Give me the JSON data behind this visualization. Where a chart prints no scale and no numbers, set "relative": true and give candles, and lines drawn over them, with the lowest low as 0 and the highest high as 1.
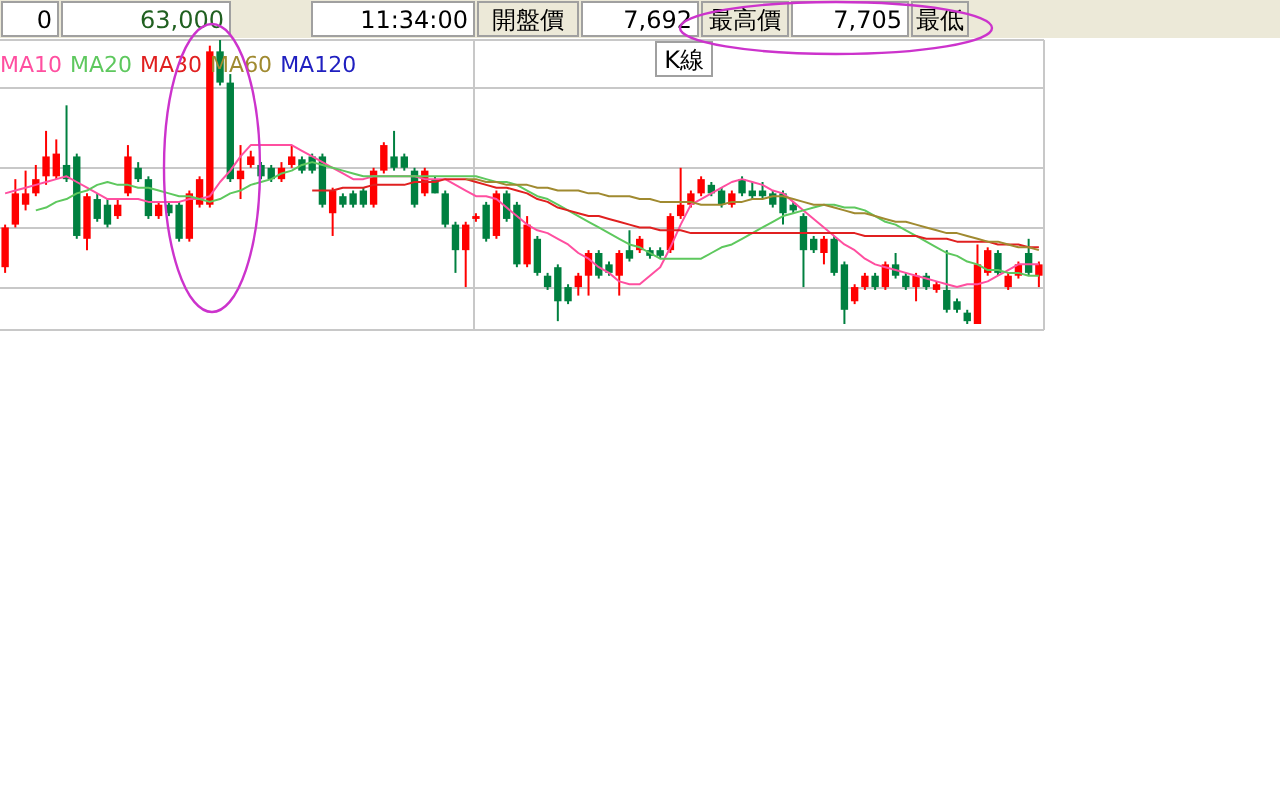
{
  "chart_data": {
    "type": "candlestick",
    "categories": [
      null,
      null,
      null,
      null,
      null,
      null,
      null,
      null,
      null,
      null,
      null,
      null,
      null,
      null,
      null,
      null,
      null,
      null,
      null,
      null,
      null,
      null,
      null,
      null,
      null,
      null,
      null,
      null,
      null,
      null,
      null,
      null,
      null,
      null,
      null,
      null,
      null,
      null,
      null,
      null,
      null,
      null,
      null,
      null,
      null,
      null,
      null,
      null,
      null,
      null,
      null,
      null,
      null,
      null,
      null,
      null,
      null,
      null,
      null,
      null,
      null,
      null,
      null,
      null,
      null,
      null,
      null,
      null,
      null,
      null,
      null,
      null,
      null,
      null,
      null,
      null,
      null,
      null,
      null,
      null,
      null,
      null,
      null,
      null,
      null,
      null,
      null,
      null,
      null,
      null,
      null,
      null,
      null,
      null,
      null,
      null,
      null,
      null,
      null,
      null,
      null,
      null
    ],
    "ohlc": [
      [
        0.2,
        0.35,
        0.18,
        0.34
      ],
      [
        0.35,
        0.51,
        0.34,
        0.46
      ],
      [
        0.42,
        0.54,
        0.4,
        0.46
      ],
      [
        0.46,
        0.56,
        0.45,
        0.51
      ],
      [
        0.52,
        0.68,
        0.49,
        0.59
      ],
      [
        0.52,
        0.65,
        0.51,
        0.6
      ],
      [
        0.56,
        0.77,
        0.5,
        0.51
      ],
      [
        0.59,
        0.6,
        0.3,
        0.31
      ],
      [
        0.3,
        0.46,
        0.26,
        0.45
      ],
      [
        0.44,
        0.46,
        0.36,
        0.37
      ],
      [
        0.42,
        0.44,
        0.34,
        0.35
      ],
      [
        0.38,
        0.44,
        0.37,
        0.42
      ],
      [
        0.46,
        0.63,
        0.45,
        0.59
      ],
      [
        0.55,
        0.57,
        0.5,
        0.51
      ],
      [
        0.51,
        0.52,
        0.37,
        0.38
      ],
      [
        0.38,
        0.43,
        0.37,
        0.42
      ],
      [
        0.42,
        0.43,
        0.38,
        0.39
      ],
      [
        0.42,
        0.43,
        0.29,
        0.3
      ],
      [
        0.3,
        0.47,
        0.29,
        0.46
      ],
      [
        0.42,
        0.52,
        0.41,
        0.51
      ],
      [
        0.42,
        0.98,
        0.41,
        0.96
      ],
      [
        0.96,
        1.0,
        0.84,
        0.85
      ],
      [
        0.85,
        0.88,
        0.5,
        0.51
      ],
      [
        0.51,
        0.63,
        0.44,
        0.54
      ],
      [
        0.56,
        0.61,
        0.55,
        0.59
      ],
      [
        0.56,
        0.57,
        0.51,
        0.52
      ],
      [
        0.55,
        0.56,
        0.5,
        0.51
      ],
      [
        0.51,
        0.57,
        0.5,
        0.55
      ],
      [
        0.56,
        0.63,
        0.55,
        0.59
      ],
      [
        0.58,
        0.59,
        0.53,
        0.54
      ],
      [
        0.59,
        0.6,
        0.53,
        0.54
      ],
      [
        0.59,
        0.6,
        0.41,
        0.42
      ],
      [
        0.39,
        0.48,
        0.31,
        0.47
      ],
      [
        0.45,
        0.46,
        0.41,
        0.42
      ],
      [
        0.46,
        0.47,
        0.41,
        0.42
      ],
      [
        0.47,
        0.48,
        0.41,
        0.42
      ],
      [
        0.42,
        0.55,
        0.41,
        0.54
      ],
      [
        0.54,
        0.64,
        0.53,
        0.63
      ],
      [
        0.59,
        0.68,
        0.54,
        0.55
      ],
      [
        0.59,
        0.6,
        0.54,
        0.55
      ],
      [
        0.54,
        0.55,
        0.41,
        0.42
      ],
      [
        0.46,
        0.55,
        0.45,
        0.54
      ],
      [
        0.51,
        0.52,
        0.46,
        0.46
      ],
      [
        0.46,
        0.47,
        0.34,
        0.35
      ],
      [
        0.35,
        0.36,
        0.18,
        0.26
      ],
      [
        0.26,
        0.36,
        0.13,
        0.35
      ],
      [
        0.37,
        0.39,
        0.36,
        0.38
      ],
      [
        0.42,
        0.43,
        0.29,
        0.3
      ],
      [
        0.31,
        0.47,
        0.3,
        0.46
      ],
      [
        0.46,
        0.47,
        0.36,
        0.37
      ],
      [
        0.42,
        0.43,
        0.2,
        0.21
      ],
      [
        0.21,
        0.38,
        0.2,
        0.35
      ],
      [
        0.3,
        0.31,
        0.17,
        0.18
      ],
      [
        0.17,
        0.18,
        0.12,
        0.13
      ],
      [
        0.2,
        0.21,
        0.01,
        0.08
      ],
      [
        0.13,
        0.14,
        0.07,
        0.08
      ],
      [
        0.13,
        0.18,
        0.1,
        0.17
      ],
      [
        0.17,
        0.26,
        0.1,
        0.25
      ],
      [
        0.25,
        0.26,
        0.16,
        0.17
      ],
      [
        0.21,
        0.22,
        0.17,
        0.18
      ],
      [
        0.17,
        0.26,
        0.1,
        0.25
      ],
      [
        0.26,
        0.33,
        0.22,
        0.23
      ],
      [
        0.26,
        0.31,
        0.25,
        0.3
      ],
      [
        0.26,
        0.27,
        0.23,
        0.24
      ],
      [
        0.26,
        0.27,
        0.23,
        0.24
      ],
      [
        0.26,
        0.39,
        0.25,
        0.38
      ],
      [
        0.38,
        0.55,
        0.37,
        0.42
      ],
      [
        0.42,
        0.47,
        0.41,
        0.46
      ],
      [
        0.46,
        0.52,
        0.45,
        0.51
      ],
      [
        0.49,
        0.5,
        0.45,
        0.46
      ],
      [
        0.47,
        0.48,
        0.41,
        0.42
      ],
      [
        0.42,
        0.47,
        0.41,
        0.46
      ],
      [
        0.51,
        0.52,
        0.45,
        0.46
      ],
      [
        0.47,
        0.5,
        0.44,
        0.45
      ],
      [
        0.47,
        0.5,
        0.44,
        0.45
      ],
      [
        0.46,
        0.47,
        0.41,
        0.42
      ],
      [
        0.46,
        0.47,
        0.35,
        0.39
      ],
      [
        0.42,
        0.43,
        0.39,
        0.4
      ],
      [
        0.38,
        0.39,
        0.13,
        0.26
      ],
      [
        0.3,
        0.31,
        0.25,
        0.26
      ],
      [
        0.25,
        0.31,
        0.21,
        0.3
      ],
      [
        0.3,
        0.31,
        0.17,
        0.18
      ],
      [
        0.21,
        0.22,
        0.0,
        0.05
      ],
      [
        0.08,
        0.14,
        0.07,
        0.13
      ],
      [
        0.13,
        0.18,
        0.12,
        0.17
      ],
      [
        0.17,
        0.18,
        0.12,
        0.13
      ],
      [
        0.13,
        0.22,
        0.12,
        0.21
      ],
      [
        0.21,
        0.25,
        0.16,
        0.17
      ],
      [
        0.17,
        0.18,
        0.12,
        0.13
      ],
      [
        0.13,
        0.18,
        0.08,
        0.17
      ],
      [
        0.17,
        0.18,
        0.12,
        0.13
      ],
      [
        0.12,
        0.15,
        0.11,
        0.14
      ],
      [
        0.12,
        0.26,
        0.04,
        0.05
      ],
      [
        0.08,
        0.09,
        0.04,
        0.05
      ],
      [
        0.04,
        0.05,
        0.0,
        0.01
      ],
      [
        0.0,
        0.28,
        0.0,
        0.21
      ],
      [
        0.18,
        0.27,
        0.17,
        0.26
      ],
      [
        0.25,
        0.26,
        0.17,
        0.18
      ],
      [
        0.13,
        0.18,
        0.12,
        0.17
      ],
      [
        0.17,
        0.22,
        0.16,
        0.21
      ],
      [
        0.25,
        0.3,
        0.17,
        0.18
      ],
      [
        0.17,
        0.22,
        0.13,
        0.21
      ]
    ],
    "series": [
      {
        "type": "line",
        "name": "MA10",
        "color": "#ff4fa0",
        "values": [
          0.46,
          0.47,
          0.48,
          0.49,
          0.5,
          0.51,
          0.52,
          0.5,
          0.48,
          0.46,
          0.44,
          0.44,
          0.44,
          0.44,
          0.43,
          0.43,
          0.43,
          0.43,
          0.44,
          0.44,
          0.45,
          0.5,
          0.54,
          0.59,
          0.63,
          0.63,
          0.63,
          0.63,
          0.63,
          0.61,
          0.59,
          0.57,
          0.55,
          0.53,
          0.51,
          0.51,
          0.52,
          0.52,
          0.52,
          0.52,
          0.52,
          0.51,
          0.51,
          0.51,
          0.49,
          0.47,
          0.45,
          0.45,
          0.44,
          0.41,
          0.38,
          0.35,
          0.33,
          0.32,
          0.3,
          0.28,
          0.25,
          0.23,
          0.2,
          0.18,
          0.15,
          0.14,
          0.14,
          0.17,
          0.2,
          0.27,
          0.35,
          0.42,
          0.44,
          0.46,
          0.48,
          0.5,
          0.51,
          0.5,
          0.49,
          0.47,
          0.46,
          0.43,
          0.4,
          0.37,
          0.34,
          0.31,
          0.28,
          0.26,
          0.23,
          0.21,
          0.2,
          0.19,
          0.18,
          0.17,
          0.16,
          0.15,
          0.14,
          0.13,
          0.14,
          0.14,
          0.15,
          0.17,
          0.19,
          0.21,
          0.21,
          0.21
        ]
      },
      {
        "type": "line",
        "name": "MA20",
        "color": "#5ec85e",
        "values": [
          null,
          null,
          null,
          0.4,
          0.41,
          0.43,
          0.44,
          0.46,
          0.47,
          0.49,
          0.5,
          0.49,
          0.49,
          0.48,
          0.48,
          0.47,
          0.46,
          0.45,
          0.45,
          0.44,
          0.43,
          0.44,
          0.46,
          0.47,
          0.49,
          0.5,
          0.51,
          0.53,
          0.54,
          0.56,
          0.57,
          0.56,
          0.55,
          0.54,
          0.53,
          0.52,
          0.52,
          0.52,
          0.52,
          0.52,
          0.52,
          0.52,
          0.52,
          0.52,
          0.52,
          0.52,
          0.52,
          0.51,
          0.5,
          0.5,
          0.49,
          0.47,
          0.45,
          0.44,
          0.42,
          0.4,
          0.38,
          0.36,
          0.34,
          0.32,
          0.3,
          0.28,
          0.27,
          0.25,
          0.23,
          0.23,
          0.23,
          0.23,
          0.23,
          0.25,
          0.27,
          0.28,
          0.3,
          0.32,
          0.34,
          0.36,
          0.38,
          0.39,
          0.4,
          0.41,
          0.42,
          0.42,
          0.41,
          0.41,
          0.4,
          0.38,
          0.36,
          0.35,
          0.33,
          0.31,
          0.29,
          0.27,
          0.25,
          0.24,
          0.22,
          0.21,
          0.19,
          0.19,
          0.18,
          0.18,
          0.17,
          0.17
        ]
      },
      {
        "type": "line",
        "name": "MA30",
        "color": "#e02020",
        "values": [
          null,
          null,
          null,
          null,
          null,
          null,
          null,
          null,
          null,
          null,
          null,
          null,
          null,
          null,
          null,
          null,
          null,
          null,
          null,
          null,
          null,
          null,
          null,
          null,
          null,
          null,
          null,
          null,
          null,
          null,
          0.47,
          0.47,
          0.47,
          0.48,
          0.48,
          0.48,
          0.49,
          0.49,
          0.49,
          0.49,
          0.5,
          0.5,
          0.5,
          0.51,
          0.51,
          0.51,
          0.5,
          0.49,
          0.48,
          0.48,
          0.47,
          0.46,
          0.44,
          0.43,
          0.41,
          0.4,
          0.39,
          0.38,
          0.38,
          0.37,
          0.36,
          0.35,
          0.34,
          0.34,
          0.33,
          0.33,
          0.33,
          0.32,
          0.32,
          0.32,
          0.32,
          0.32,
          0.32,
          0.32,
          0.32,
          0.32,
          0.32,
          0.32,
          0.32,
          0.32,
          0.32,
          0.32,
          0.32,
          0.32,
          0.31,
          0.31,
          0.31,
          0.31,
          0.31,
          0.31,
          0.3,
          0.3,
          0.3,
          0.29,
          0.29,
          0.29,
          0.29,
          0.28,
          0.28,
          0.28,
          0.27,
          0.27
        ]
      },
      {
        "type": "line",
        "name": "MA60",
        "color": "#a08a30",
        "values": [
          null,
          null,
          null,
          null,
          null,
          null,
          null,
          null,
          null,
          null,
          null,
          null,
          null,
          null,
          null,
          null,
          null,
          null,
          null,
          null,
          null,
          null,
          null,
          null,
          null,
          null,
          null,
          null,
          null,
          null,
          null,
          null,
          null,
          null,
          null,
          null,
          null,
          null,
          null,
          null,
          null,
          null,
          null,
          null,
          null,
          0.51,
          0.51,
          0.5,
          0.5,
          0.49,
          0.49,
          0.49,
          0.48,
          0.48,
          0.47,
          0.47,
          0.47,
          0.46,
          0.46,
          0.45,
          0.45,
          0.45,
          0.44,
          0.44,
          0.43,
          0.43,
          0.43,
          0.43,
          0.42,
          0.42,
          0.42,
          0.43,
          0.43,
          0.44,
          0.44,
          0.45,
          0.45,
          0.44,
          0.43,
          0.42,
          0.42,
          0.41,
          0.4,
          0.39,
          0.39,
          0.38,
          0.37,
          0.36,
          0.36,
          0.35,
          0.34,
          0.33,
          0.32,
          0.32,
          0.31,
          0.3,
          0.29,
          0.29,
          0.28,
          0.27,
          0.27,
          0.26
        ]
      },
      {
        "type": "line",
        "name": "MA120",
        "color": "#2020c0",
        "values": [
          null,
          null,
          null,
          null,
          null,
          null,
          null,
          null,
          null,
          null,
          null,
          null,
          null,
          null,
          null,
          null,
          null,
          null,
          null,
          null,
          null,
          null,
          null,
          null,
          null,
          null,
          null,
          null,
          null,
          null,
          null,
          null,
          null,
          null,
          null,
          null,
          null,
          null,
          null,
          null,
          null,
          null,
          null,
          null,
          null,
          null,
          null,
          null,
          null,
          null,
          null,
          null,
          null,
          null,
          null,
          null,
          null,
          null,
          null,
          null,
          null,
          null,
          null,
          null,
          null,
          null,
          null,
          null,
          null,
          null,
          null,
          null,
          null,
          null,
          null,
          null,
          null,
          null,
          null,
          null,
          null,
          null,
          null,
          null,
          null,
          null,
          null,
          null,
          null,
          null,
          null,
          null,
          null,
          null,
          null,
          null,
          null,
          null,
          null,
          null,
          null,
          null
        ]
      }
    ],
    "relative": true,
    "grid": true,
    "legend": "top left",
    "annotations": [
      "0",
      "63,000",
      "11:34:00",
      "開盤價",
      "7,692",
      "最高價",
      "7,705",
      "最低",
      "K線"
    ]
  }
}
